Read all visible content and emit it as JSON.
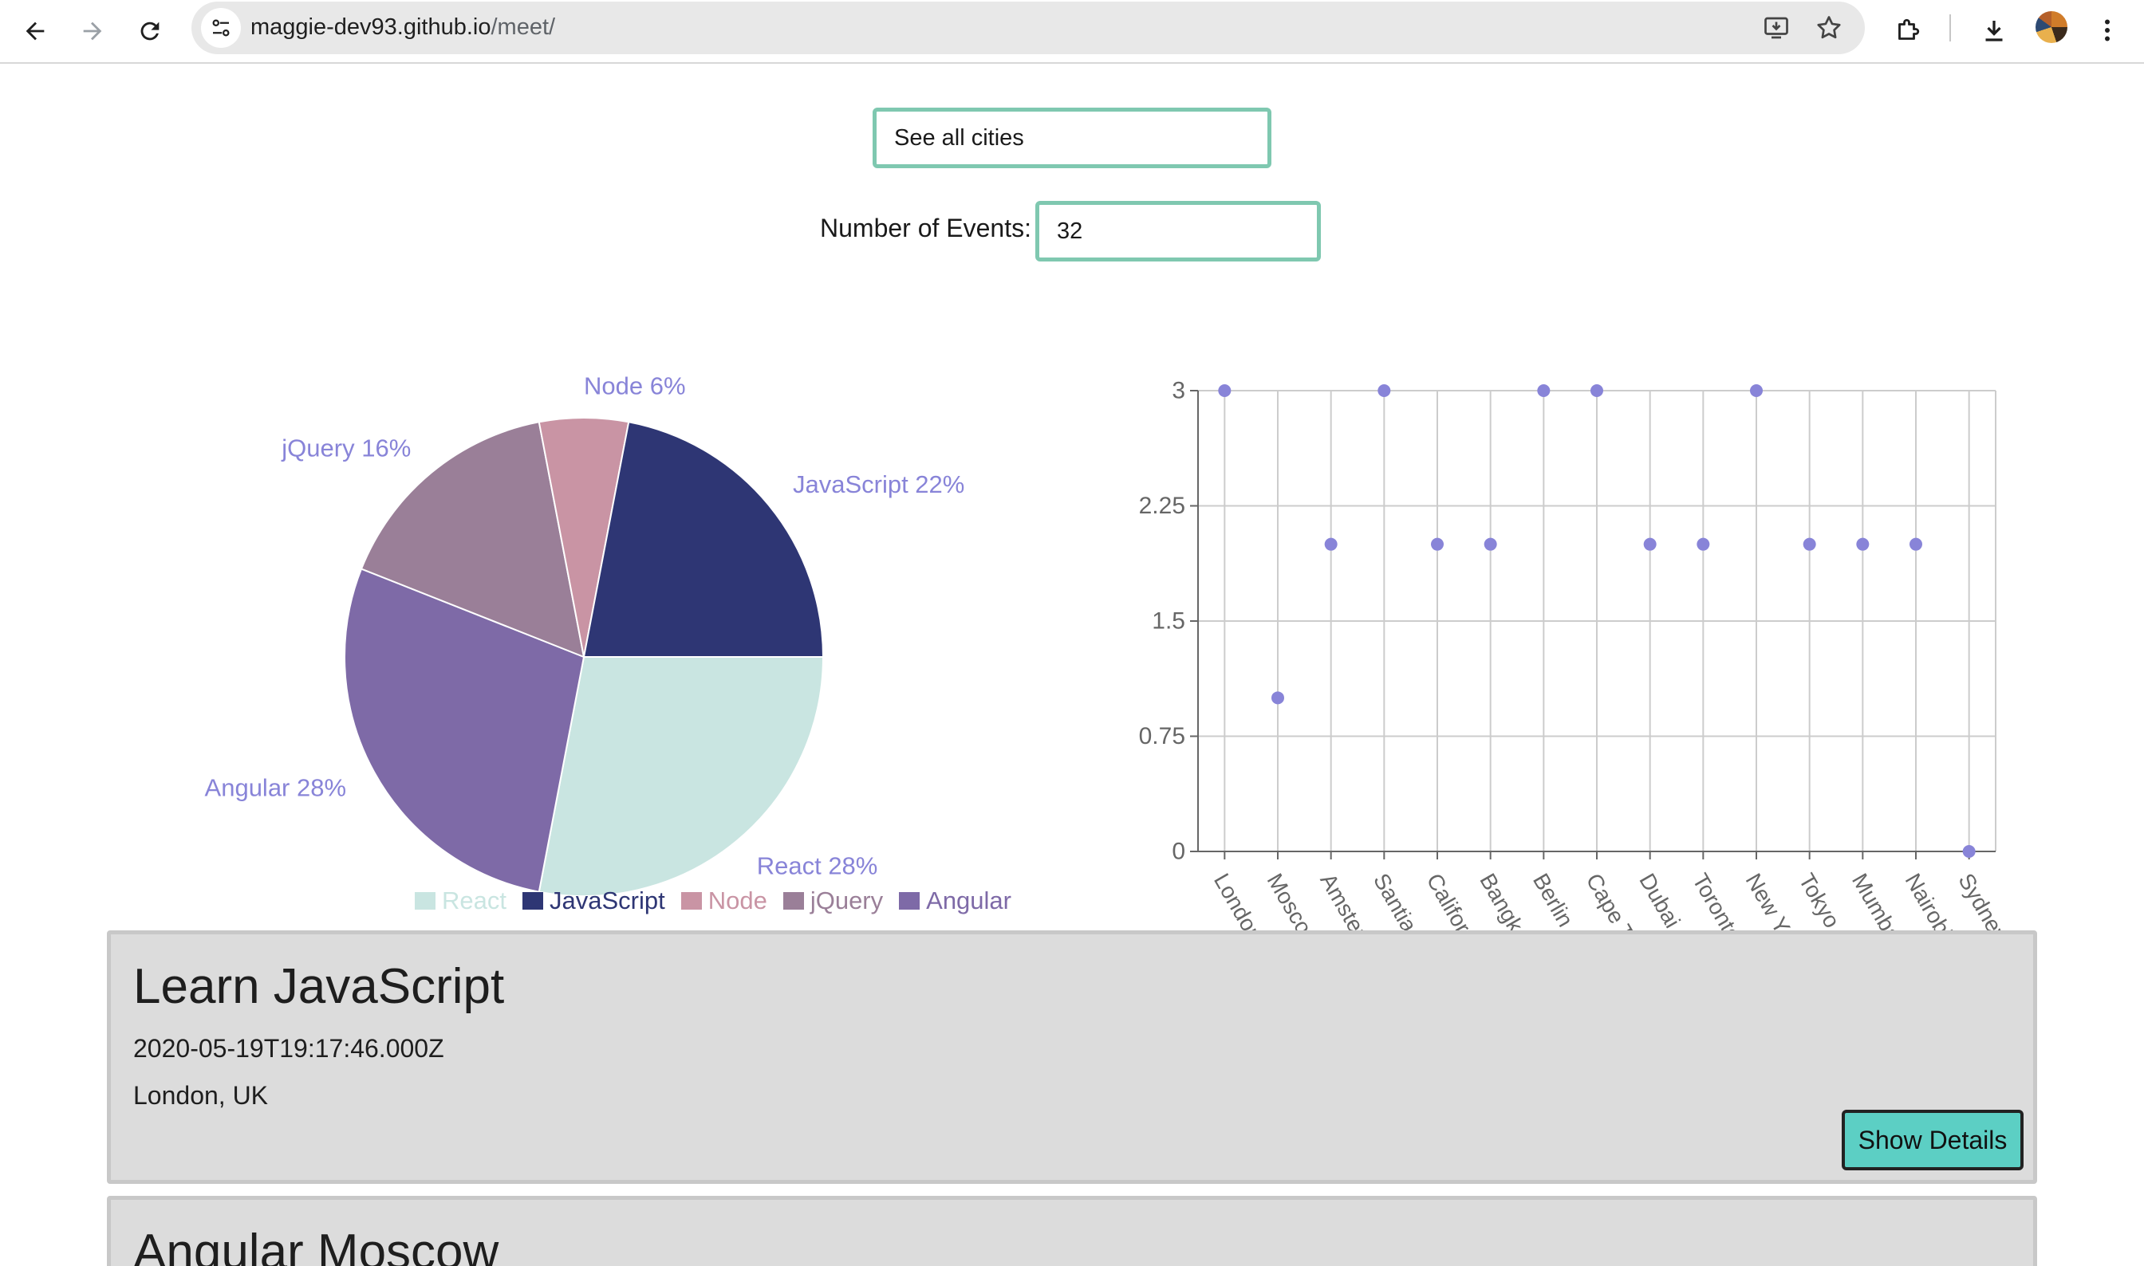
{
  "browser": {
    "url_host": "maggie-dev93.github.io",
    "url_path": "/meet/"
  },
  "search": {
    "city_value": "See all cities"
  },
  "events_count": {
    "label": "Number of Events:",
    "value": "32"
  },
  "colors": {
    "input_border": "#7fc8b0",
    "card_bg": "#dcdcdc",
    "button_bg": "#5ccfc4",
    "label_purple": "#8884d8"
  },
  "chart_data": [
    {
      "type": "pie",
      "slices": [
        {
          "name": "React",
          "value": 28,
          "color": "#c9e5e1",
          "label": "React 28%"
        },
        {
          "name": "Angular",
          "value": 28,
          "color": "#7e6aa7",
          "label": "Angular 28%"
        },
        {
          "name": "jQuery",
          "value": 16,
          "color": "#9a7f98",
          "label": "jQuery 16%"
        },
        {
          "name": "Node",
          "value": 6,
          "color": "#c994a4",
          "label": "Node 6%"
        },
        {
          "name": "JavaScript",
          "value": 22,
          "color": "#2e3674",
          "label": "JavaScript 22%"
        }
      ],
      "legend": [
        "React",
        "JavaScript",
        "Node",
        "jQuery",
        "Angular"
      ],
      "legend_position": "bottom-center"
    },
    {
      "type": "scatter",
      "categories": [
        "London",
        "Moscow",
        "Amsterdam",
        "Santiago",
        "California",
        "Bangkok",
        "Berlin",
        "Cape Town",
        "Dubai",
        "Toronto",
        "New York",
        "Tokyo",
        "Mumbai",
        "Nairobi",
        "Sydney NSW"
      ],
      "values": [
        3,
        1,
        2,
        3,
        2,
        2,
        3,
        3,
        2,
        2,
        3,
        2,
        2,
        2,
        0
      ],
      "yticks": [
        "0",
        "0.75",
        "1.5",
        "2.25",
        "3"
      ],
      "ylim": [
        0,
        3
      ],
      "grid": true,
      "point_color": "#8884d8"
    }
  ],
  "events": [
    {
      "title": "Learn JavaScript",
      "date": "2020-05-19T19:17:46.000Z",
      "location": "London, UK",
      "button": "Show Details"
    },
    {
      "title": "Angular Moscow"
    }
  ]
}
